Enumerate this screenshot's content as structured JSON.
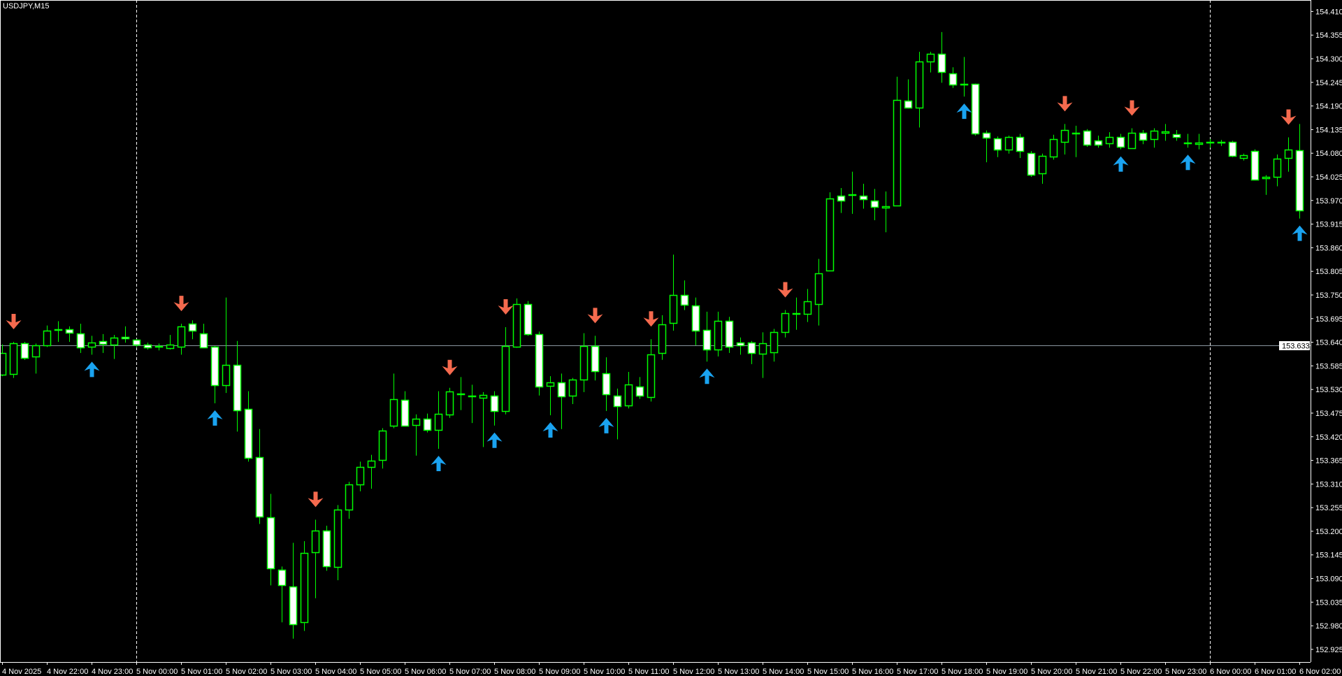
{
  "window": {
    "symbol_title": "USDJPY,M15"
  },
  "colors": {
    "background": "#000000",
    "candle_outline": "#00ff00",
    "bull_body": "#000000",
    "bear_body": "#ffffff",
    "axis": "#ffffff",
    "sell_arrow": "#f56a4e",
    "buy_arrow": "#1aa3f0",
    "price_line": "#8a96a0"
  },
  "chart_data": {
    "type": "candlestick",
    "title": "USDJPY,M15",
    "timeframe": "M15",
    "ylim": [
      152.925,
      154.41
    ],
    "grid": false,
    "current_price_label": "153.633",
    "current_price": 153.633,
    "y_ticks": [
      "154.410",
      "154.355",
      "154.300",
      "154.245",
      "154.190",
      "154.135",
      "154.080",
      "154.025",
      "153.970",
      "153.915",
      "153.860",
      "153.805",
      "153.750",
      "153.695",
      "153.640",
      "153.585",
      "153.530",
      "153.475",
      "153.420",
      "153.365",
      "153.310",
      "153.255",
      "153.200",
      "153.145",
      "153.090",
      "153.035",
      "152.980",
      "152.925"
    ],
    "x_ticks": [
      "4 Nov 2025",
      "4 Nov 22:00",
      "4 Nov 23:00",
      "5 Nov 00:00",
      "5 Nov 01:00",
      "5 Nov 02:00",
      "5 Nov 03:00",
      "5 Nov 04:00",
      "5 Nov 05:00",
      "5 Nov 06:00",
      "5 Nov 07:00",
      "5 Nov 08:00",
      "5 Nov 09:00",
      "5 Nov 10:00",
      "5 Nov 11:00",
      "5 Nov 12:00",
      "5 Nov 13:00",
      "5 Nov 14:00",
      "5 Nov 15:00",
      "5 Nov 16:00",
      "5 Nov 17:00",
      "5 Nov 18:00",
      "5 Nov 19:00",
      "5 Nov 20:00",
      "5 Nov 21:00",
      "5 Nov 22:00",
      "5 Nov 23:00",
      "6 Nov 00:00",
      "6 Nov 01:00",
      "6 Nov 02:00"
    ],
    "day_separators": [
      "5 Nov 00:00",
      "6 Nov 00:00"
    ],
    "ohlc_columns": [
      "open",
      "high",
      "low",
      "close"
    ],
    "ohlc": [
      [
        153.565,
        153.635,
        153.561,
        153.615
      ],
      [
        153.565,
        153.641,
        153.557,
        153.637
      ],
      [
        153.637,
        153.641,
        153.599,
        153.603
      ],
      [
        153.607,
        153.637,
        153.567,
        153.633
      ],
      [
        153.633,
        153.679,
        153.629,
        153.667
      ],
      [
        153.669,
        153.689,
        153.641,
        153.671
      ],
      [
        153.671,
        153.677,
        153.641,
        153.663
      ],
      [
        153.661,
        153.683,
        153.615,
        153.629
      ],
      [
        153.629,
        153.655,
        153.611,
        153.639
      ],
      [
        153.643,
        153.659,
        153.615,
        153.637
      ],
      [
        153.635,
        153.657,
        153.601,
        153.651
      ],
      [
        153.653,
        153.677,
        153.639,
        153.649
      ],
      [
        153.645,
        153.647,
        153.629,
        153.633
      ],
      [
        153.635,
        153.639,
        153.623,
        153.629
      ],
      [
        153.631,
        153.637,
        153.621,
        153.629
      ],
      [
        153.627,
        153.657,
        153.623,
        153.635
      ],
      [
        153.629,
        153.683,
        153.611,
        153.677
      ],
      [
        153.683,
        153.691,
        153.647,
        153.667
      ],
      [
        153.661,
        153.683,
        153.627,
        153.629
      ],
      [
        153.629,
        153.631,
        153.498,
        153.539
      ],
      [
        153.539,
        153.744,
        153.522,
        153.587
      ],
      [
        153.587,
        153.643,
        153.432,
        153.482
      ],
      [
        153.484,
        153.526,
        153.362,
        153.37
      ],
      [
        153.372,
        153.438,
        153.217,
        153.233
      ],
      [
        153.233,
        153.287,
        153.074,
        153.114
      ],
      [
        153.11,
        153.118,
        152.988,
        153.074
      ],
      [
        153.072,
        153.173,
        152.95,
        152.984
      ],
      [
        152.988,
        153.177,
        152.968,
        153.149
      ],
      [
        153.151,
        153.227,
        153.044,
        153.201
      ],
      [
        153.201,
        153.213,
        153.108,
        153.118
      ],
      [
        153.118,
        153.261,
        153.086,
        153.251
      ],
      [
        153.251,
        153.315,
        153.229,
        153.309
      ],
      [
        153.309,
        153.362,
        153.293,
        153.35
      ],
      [
        153.35,
        153.378,
        153.299,
        153.364
      ],
      [
        153.366,
        153.44,
        153.346,
        153.434
      ],
      [
        153.446,
        153.567,
        153.44,
        153.508
      ],
      [
        153.506,
        153.526,
        153.444,
        153.446
      ],
      [
        153.448,
        153.472,
        153.376,
        153.462
      ],
      [
        153.462,
        153.474,
        153.43,
        153.436
      ],
      [
        153.436,
        153.526,
        153.392,
        153.474
      ],
      [
        153.472,
        153.534,
        153.464,
        153.526
      ],
      [
        153.52,
        153.559,
        153.482,
        153.518
      ],
      [
        153.514,
        153.541,
        153.452,
        153.516
      ],
      [
        153.512,
        153.524,
        153.396,
        153.518
      ],
      [
        153.516,
        153.526,
        153.446,
        153.48
      ],
      [
        153.48,
        153.675,
        153.472,
        153.631
      ],
      [
        153.629,
        153.742,
        153.627,
        153.729
      ],
      [
        153.729,
        153.736,
        153.655,
        153.659
      ],
      [
        153.659,
        153.665,
        153.516,
        153.537
      ],
      [
        153.539,
        153.561,
        153.47,
        153.547
      ],
      [
        153.547,
        153.567,
        153.438,
        153.514
      ],
      [
        153.516,
        153.557,
        153.496,
        153.553
      ],
      [
        153.553,
        153.661,
        153.524,
        153.631
      ],
      [
        153.631,
        153.655,
        153.551,
        153.573
      ],
      [
        153.567,
        153.605,
        153.48,
        153.518
      ],
      [
        153.516,
        153.532,
        153.414,
        153.492
      ],
      [
        153.492,
        153.571,
        153.486,
        153.541
      ],
      [
        153.537,
        153.559,
        153.508,
        153.516
      ],
      [
        153.512,
        153.647,
        153.502,
        153.611
      ],
      [
        153.615,
        153.703,
        153.599,
        153.681
      ],
      [
        153.685,
        153.844,
        153.667,
        153.75
      ],
      [
        153.75,
        153.784,
        153.715,
        153.727
      ],
      [
        153.725,
        153.744,
        153.633,
        153.667
      ],
      [
        153.669,
        153.711,
        153.595,
        153.623
      ],
      [
        153.623,
        153.711,
        153.607,
        153.689
      ],
      [
        153.689,
        153.699,
        153.615,
        153.629
      ],
      [
        153.639,
        153.651,
        153.611,
        153.633
      ],
      [
        153.639,
        153.643,
        153.589,
        153.615
      ],
      [
        153.613,
        153.663,
        153.557,
        153.637
      ],
      [
        153.615,
        153.671,
        153.595,
        153.663
      ],
      [
        153.663,
        153.715,
        153.651,
        153.707
      ],
      [
        153.707,
        153.744,
        153.669,
        153.705
      ],
      [
        153.705,
        153.764,
        153.687,
        153.735
      ],
      [
        153.729,
        153.834,
        153.679,
        153.8
      ],
      [
        153.808,
        153.989,
        153.806,
        153.975
      ],
      [
        153.981,
        153.999,
        153.941,
        153.969
      ],
      [
        153.983,
        154.037,
        153.939,
        153.985
      ],
      [
        153.981,
        154.009,
        153.951,
        153.973
      ],
      [
        153.969,
        153.997,
        153.924,
        153.955
      ],
      [
        153.953,
        153.991,
        153.896,
        153.957
      ],
      [
        153.959,
        154.258,
        153.957,
        154.204
      ],
      [
        154.202,
        154.252,
        154.184,
        154.186
      ],
      [
        154.186,
        154.316,
        154.14,
        154.294
      ],
      [
        154.294,
        154.316,
        154.268,
        154.312
      ],
      [
        154.312,
        154.362,
        154.244,
        154.27
      ],
      [
        154.266,
        154.28,
        154.232,
        154.24
      ],
      [
        154.242,
        154.304,
        154.212,
        154.24
      ],
      [
        154.242,
        154.242,
        154.121,
        154.127
      ],
      [
        154.127,
        154.133,
        154.059,
        154.115
      ],
      [
        154.115,
        154.119,
        154.071,
        154.089
      ],
      [
        154.087,
        154.121,
        154.079,
        154.117
      ],
      [
        154.117,
        154.125,
        154.069,
        154.085
      ],
      [
        154.081,
        154.085,
        154.025,
        154.031
      ],
      [
        154.033,
        154.079,
        154.009,
        154.073
      ],
      [
        154.073,
        154.123,
        154.065,
        154.113
      ],
      [
        154.107,
        154.148,
        154.077,
        154.134
      ],
      [
        154.128,
        154.144,
        154.071,
        154.126
      ],
      [
        154.132,
        154.136,
        154.095,
        154.099
      ],
      [
        154.109,
        154.121,
        154.093,
        154.099
      ],
      [
        154.103,
        154.129,
        154.093,
        154.117
      ],
      [
        154.117,
        154.125,
        154.089,
        154.095
      ],
      [
        154.093,
        154.138,
        154.091,
        154.128
      ],
      [
        154.128,
        154.134,
        154.101,
        154.111
      ],
      [
        154.113,
        154.138,
        154.093,
        154.132
      ],
      [
        154.126,
        154.148,
        154.109,
        154.13
      ],
      [
        154.124,
        154.134,
        154.109,
        154.117
      ],
      [
        154.105,
        154.125,
        154.093,
        154.103
      ],
      [
        154.101,
        154.125,
        154.089,
        154.105
      ],
      [
        154.105,
        154.113,
        154.093,
        154.107
      ],
      [
        154.107,
        154.111,
        154.097,
        154.105
      ],
      [
        154.107,
        154.109,
        154.071,
        154.075
      ],
      [
        154.069,
        154.079,
        154.063,
        154.075
      ],
      [
        154.085,
        154.089,
        154.017,
        154.019
      ],
      [
        154.021,
        154.029,
        153.983,
        154.025
      ],
      [
        154.025,
        154.077,
        154.003,
        154.067
      ],
      [
        154.069,
        154.117,
        154.037,
        154.089
      ],
      [
        154.087,
        154.148,
        153.928,
        153.947
      ]
    ],
    "sell_signal_bars": [
      1,
      16,
      28,
      40,
      45,
      53,
      58,
      70,
      95,
      101,
      115
    ],
    "buy_signal_bars": [
      8,
      19,
      39,
      44,
      49,
      54,
      63,
      86,
      100,
      106,
      116
    ]
  }
}
